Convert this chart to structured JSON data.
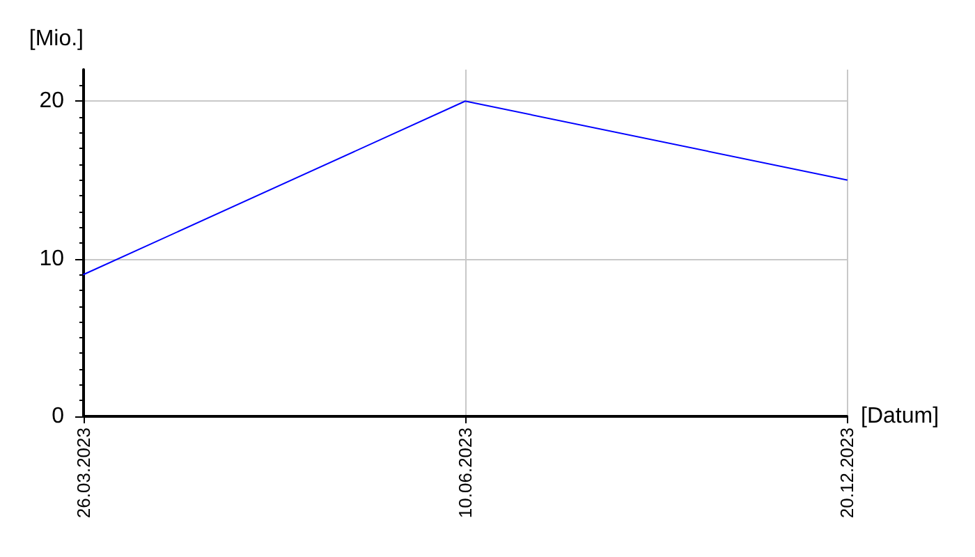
{
  "chart_data": {
    "type": "line",
    "xlabel": "[Datum]",
    "ylabel": "[Mio.]",
    "categories": [
      "26.03.2023",
      "10.06.2023",
      "20.12.2023"
    ],
    "series": [
      {
        "color": "#0000ff",
        "values": [
          9,
          20,
          15
        ]
      }
    ],
    "ylim": [
      0,
      22
    ],
    "yticks": [
      0,
      10,
      20
    ],
    "grid": true,
    "marker": "none",
    "line_style": "solid"
  }
}
